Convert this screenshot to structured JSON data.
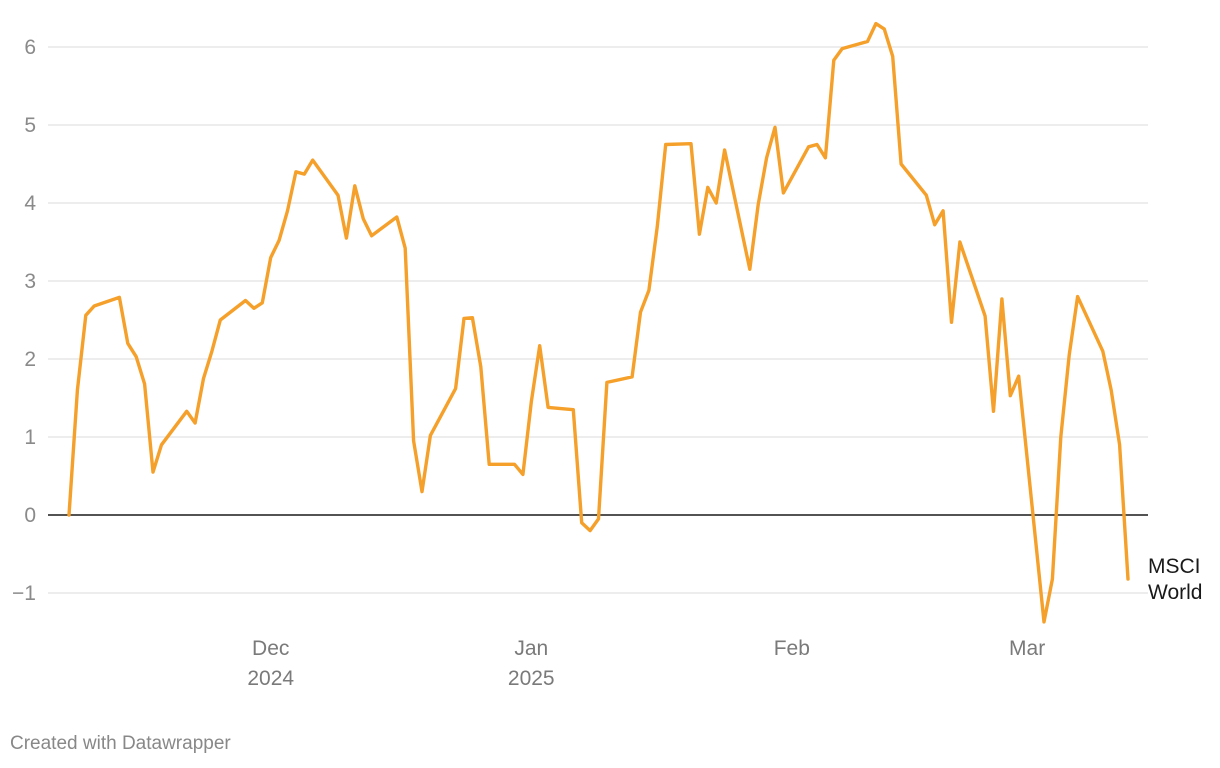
{
  "chart_data": {
    "type": "line",
    "title": "",
    "xlabel": "",
    "ylabel": "",
    "ylim": [
      -1.5,
      6.5
    ],
    "yticks": [
      -1,
      0,
      1,
      2,
      3,
      4,
      5,
      6
    ],
    "ytick_labels": [
      "−1",
      "0",
      "1",
      "2",
      "3",
      "4",
      "5",
      "6"
    ],
    "grid": true,
    "baseline": 0,
    "xrange": [
      "2024-11-07",
      "2025-03-13"
    ],
    "xticks": [
      {
        "date": "2024-12-01",
        "line1": "Dec",
        "line2": "2024"
      },
      {
        "date": "2025-01-01",
        "line1": "Jan",
        "line2": "2025"
      },
      {
        "date": "2025-02-01",
        "line1": "Feb",
        "line2": ""
      },
      {
        "date": "2025-03-01",
        "line1": "Mar",
        "line2": ""
      }
    ],
    "series": [
      {
        "name": "MSCI World",
        "label_lines": [
          "MSCI",
          "World"
        ],
        "color": "#f5a02a",
        "x": [
          "2024-11-07",
          "2024-11-08",
          "2024-11-09",
          "2024-11-10",
          "2024-11-13",
          "2024-11-14",
          "2024-11-15",
          "2024-11-16",
          "2024-11-17",
          "2024-11-18",
          "2024-11-21",
          "2024-11-22",
          "2024-11-23",
          "2024-11-24",
          "2024-11-25",
          "2024-11-28",
          "2024-11-29",
          "2024-11-30",
          "2024-12-01",
          "2024-12-02",
          "2024-12-03",
          "2024-12-04",
          "2024-12-05",
          "2024-12-06",
          "2024-12-09",
          "2024-12-10",
          "2024-12-11",
          "2024-12-12",
          "2024-12-13",
          "2024-12-16",
          "2024-12-17",
          "2024-12-18",
          "2024-12-19",
          "2024-12-20",
          "2024-12-23",
          "2024-12-24",
          "2024-12-25",
          "2024-12-26",
          "2024-12-27",
          "2024-12-30",
          "2024-12-31",
          "2025-01-01",
          "2025-01-02",
          "2025-01-03",
          "2025-01-06",
          "2025-01-07",
          "2025-01-08",
          "2025-01-09",
          "2025-01-10",
          "2025-01-13",
          "2025-01-14",
          "2025-01-15",
          "2025-01-16",
          "2025-01-17",
          "2025-01-20",
          "2025-01-21",
          "2025-01-22",
          "2025-01-23",
          "2025-01-24",
          "2025-01-27",
          "2025-01-28",
          "2025-01-29",
          "2025-01-30",
          "2025-01-31",
          "2025-02-03",
          "2025-02-04",
          "2025-02-05",
          "2025-02-06",
          "2025-02-07",
          "2025-02-10",
          "2025-02-11",
          "2025-02-12",
          "2025-02-13",
          "2025-02-14",
          "2025-02-17",
          "2025-02-18",
          "2025-02-19",
          "2025-02-20",
          "2025-02-21",
          "2025-02-24",
          "2025-02-25",
          "2025-02-26",
          "2025-02-27",
          "2025-02-28",
          "2025-03-03",
          "2025-03-04",
          "2025-03-05",
          "2025-03-06",
          "2025-03-07",
          "2025-03-10",
          "2025-03-11",
          "2025-03-12",
          "2025-03-13"
        ],
        "values": [
          0,
          1.6,
          2.56,
          2.68,
          2.79,
          2.2,
          2.03,
          1.68,
          0.55,
          0.9,
          1.33,
          1.18,
          1.75,
          2.1,
          2.5,
          2.75,
          2.65,
          2.72,
          3.3,
          3.52,
          3.9,
          4.4,
          4.37,
          4.55,
          4.1,
          3.55,
          4.22,
          3.8,
          3.58,
          3.82,
          3.42,
          0.95,
          0.3,
          1.02,
          1.62,
          2.52,
          2.53,
          1.9,
          0.65,
          0.65,
          0.52,
          1.45,
          2.17,
          1.38,
          1.35,
          -0.1,
          -0.2,
          -0.05,
          1.7,
          1.77,
          2.6,
          2.88,
          3.7,
          4.75,
          4.76,
          3.6,
          4.2,
          4.0,
          4.68,
          3.15,
          3.98,
          4.58,
          4.97,
          4.13,
          4.72,
          4.75,
          4.58,
          5.83,
          5.98,
          6.07,
          6.3,
          6.23,
          5.88,
          4.5,
          4.1,
          3.72,
          3.9,
          2.47,
          3.5,
          2.55,
          1.33,
          2.77,
          1.53,
          1.78,
          -1.37,
          -0.82,
          1.0,
          2.05,
          2.8,
          2.1,
          1.6,
          0.9,
          -0.82
        ]
      }
    ]
  },
  "credit": "Created with Datawrapper"
}
